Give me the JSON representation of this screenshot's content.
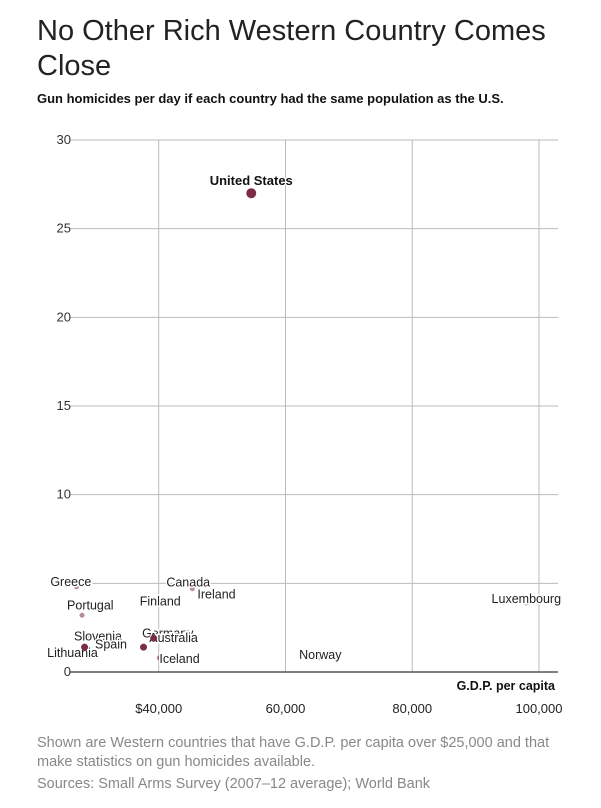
{
  "title": "No Other Rich Western Country Comes Close",
  "subtitle": "Gun homicides per day if each country had the same population as the U.S.",
  "note": "Shown are Western countries that have G.D.P. per capita over $25,000 and that make statistics on gun homicides available.",
  "source": "Sources:  Small Arms Survey (2007–12 average); World Bank",
  "colors": {
    "dot": "#7b2d45",
    "grid": "#bbbbbb",
    "axis": "#333333",
    "highlight_label": "#111111"
  },
  "chart_data": {
    "type": "scatter",
    "xlabel": "G.D.P. per capita",
    "ylabel": "",
    "xlim": [
      22000,
      101000
    ],
    "ylim": [
      0,
      30
    ],
    "xticks": [
      40000,
      60000,
      80000,
      100000
    ],
    "xtick_labels": [
      "$40,000",
      "60,000",
      "80,000",
      "100,000"
    ],
    "yticks": [
      0,
      5,
      10,
      15,
      20,
      25,
      30
    ],
    "ytick_labels": [
      "0",
      "5",
      "10",
      "15",
      "20",
      "25",
      "30"
    ],
    "grid": true,
    "points": [
      {
        "label": "United States",
        "x": 54600,
        "y": 27.0,
        "highlight": true
      },
      {
        "label": "Luxembourg",
        "x": 98000,
        "y": 3.9
      },
      {
        "label": "Norway",
        "x": 65500,
        "y": 0.8
      },
      {
        "label": "Canada",
        "x": 45300,
        "y": 4.7
      },
      {
        "label": "Ireland",
        "x": 49100,
        "y": 4.2
      },
      {
        "label": "Finland",
        "x": 40400,
        "y": 3.8
      },
      {
        "label": "Germany",
        "x": 44000,
        "y": 2.0
      },
      {
        "label": "Australia",
        "x": 44500,
        "y": 1.8
      },
      {
        "label": "Iceland",
        "x": 40100,
        "y": 0.8
      },
      {
        "label": "Greece",
        "x": 27000,
        "y": 4.8
      },
      {
        "label": "Portugal",
        "x": 27900,
        "y": 3.2
      },
      {
        "label": "Slovenia",
        "x": 29000,
        "y": 2.0
      },
      {
        "label": "Spain",
        "x": 32000,
        "y": 1.6
      },
      {
        "label": "Lithuania",
        "x": 24600,
        "y": 0.9
      },
      {
        "label": "",
        "x": 37600,
        "y": 1.4
      },
      {
        "label": "",
        "x": 39200,
        "y": 1.9
      },
      {
        "label": "",
        "x": 28300,
        "y": 1.4
      }
    ]
  }
}
